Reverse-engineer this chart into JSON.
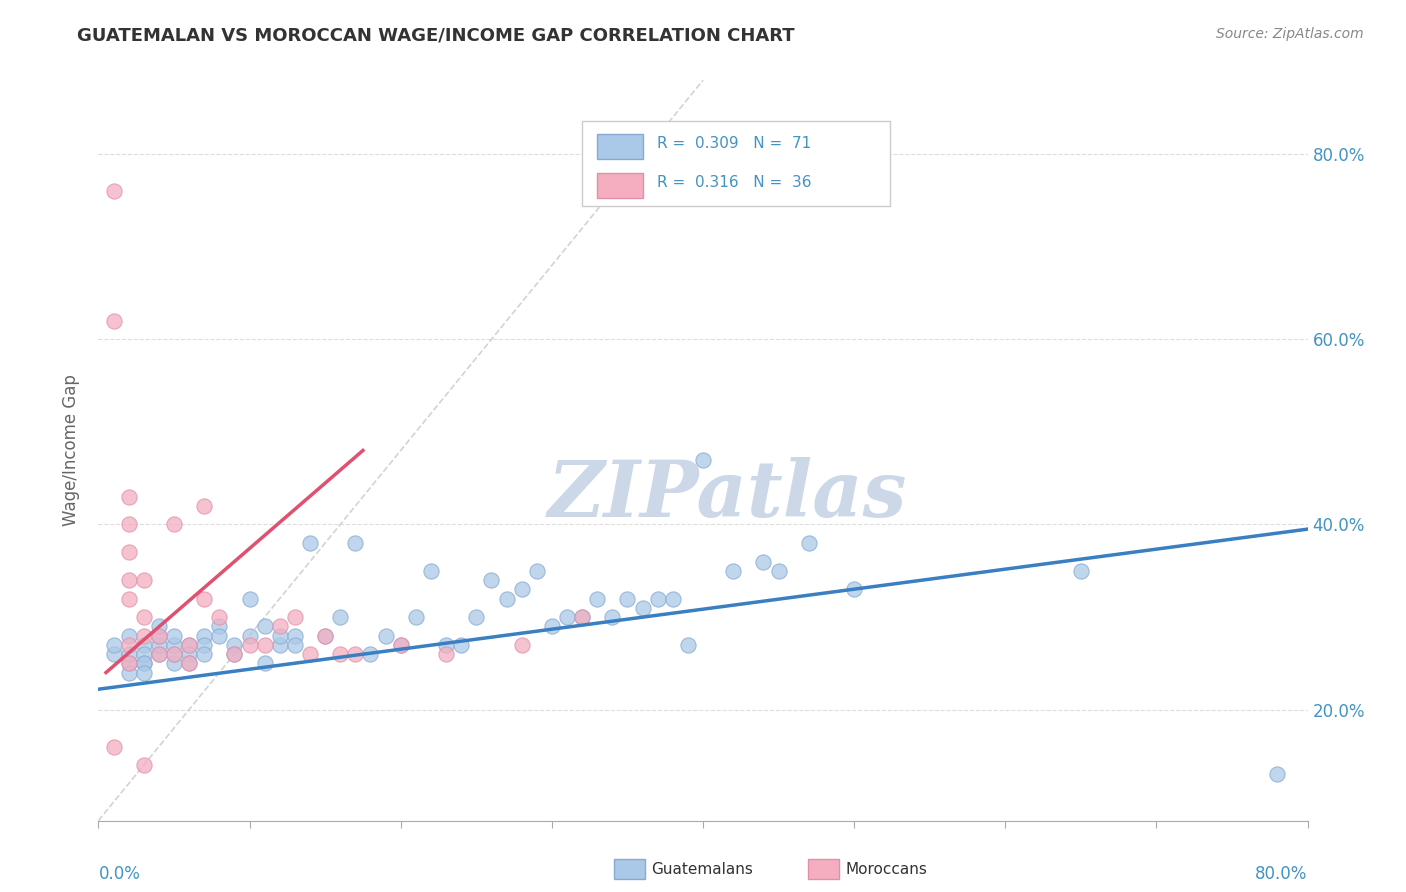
{
  "title": "GUATEMALAN VS MOROCCAN WAGE/INCOME GAP CORRELATION CHART",
  "source_text": "Source: ZipAtlas.com",
  "ylabel": "Wage/Income Gap",
  "xlim": [
    0.0,
    0.8
  ],
  "ylim": [
    0.08,
    0.88
  ],
  "yticks": [
    0.2,
    0.4,
    0.6,
    0.8
  ],
  "ytick_labels": [
    "20.0%",
    "40.0%",
    "60.0%",
    "80.0%"
  ],
  "xtick_positions": [
    0.0,
    0.1,
    0.2,
    0.3,
    0.4,
    0.5,
    0.6,
    0.7,
    0.8
  ],
  "legend1_R": "0.309",
  "legend1_N": "71",
  "legend2_R": "0.316",
  "legend2_N": "36",
  "blue_scatter_color": "#aac9e8",
  "pink_scatter_color": "#f4aec0",
  "blue_edge_color": "#88aad0",
  "pink_edge_color": "#e090a8",
  "blue_line_color": "#3a7fc1",
  "pink_line_color": "#e05070",
  "diag_color": "#cccccc",
  "grid_color": "#dddddd",
  "watermark_color": "#ccd8e8",
  "background_color": "#ffffff",
  "tick_color": "#4393c3",
  "title_color": "#333333",
  "source_color": "#888888",
  "ylabel_color": "#666666",
  "guatemalan_x": [
    0.01,
    0.01,
    0.02,
    0.02,
    0.02,
    0.02,
    0.03,
    0.03,
    0.03,
    0.03,
    0.03,
    0.04,
    0.04,
    0.04,
    0.04,
    0.05,
    0.05,
    0.05,
    0.05,
    0.06,
    0.06,
    0.06,
    0.07,
    0.07,
    0.07,
    0.08,
    0.08,
    0.09,
    0.09,
    0.1,
    0.1,
    0.11,
    0.11,
    0.12,
    0.12,
    0.13,
    0.13,
    0.14,
    0.15,
    0.16,
    0.17,
    0.18,
    0.19,
    0.2,
    0.21,
    0.22,
    0.23,
    0.24,
    0.25,
    0.26,
    0.27,
    0.28,
    0.29,
    0.3,
    0.31,
    0.32,
    0.33,
    0.34,
    0.35,
    0.36,
    0.37,
    0.38,
    0.39,
    0.4,
    0.42,
    0.44,
    0.45,
    0.47,
    0.5,
    0.65,
    0.78
  ],
  "guatemalan_y": [
    0.26,
    0.27,
    0.25,
    0.24,
    0.26,
    0.28,
    0.27,
    0.25,
    0.26,
    0.25,
    0.24,
    0.26,
    0.27,
    0.28,
    0.29,
    0.25,
    0.26,
    0.27,
    0.28,
    0.27,
    0.26,
    0.25,
    0.28,
    0.27,
    0.26,
    0.29,
    0.28,
    0.27,
    0.26,
    0.32,
    0.28,
    0.29,
    0.25,
    0.27,
    0.28,
    0.28,
    0.27,
    0.38,
    0.28,
    0.3,
    0.38,
    0.26,
    0.28,
    0.27,
    0.3,
    0.35,
    0.27,
    0.27,
    0.3,
    0.34,
    0.32,
    0.33,
    0.35,
    0.29,
    0.3,
    0.3,
    0.32,
    0.3,
    0.32,
    0.31,
    0.32,
    0.32,
    0.27,
    0.47,
    0.35,
    0.36,
    0.35,
    0.38,
    0.33,
    0.35,
    0.13
  ],
  "moroccan_x": [
    0.01,
    0.01,
    0.01,
    0.02,
    0.02,
    0.02,
    0.02,
    0.02,
    0.02,
    0.02,
    0.03,
    0.03,
    0.03,
    0.03,
    0.04,
    0.04,
    0.05,
    0.05,
    0.06,
    0.06,
    0.07,
    0.07,
    0.08,
    0.09,
    0.1,
    0.11,
    0.12,
    0.13,
    0.14,
    0.15,
    0.16,
    0.17,
    0.2,
    0.23,
    0.28,
    0.32
  ],
  "moroccan_y": [
    0.76,
    0.62,
    0.16,
    0.43,
    0.4,
    0.37,
    0.34,
    0.32,
    0.27,
    0.25,
    0.34,
    0.3,
    0.28,
    0.14,
    0.28,
    0.26,
    0.4,
    0.26,
    0.27,
    0.25,
    0.42,
    0.32,
    0.3,
    0.26,
    0.27,
    0.27,
    0.29,
    0.3,
    0.26,
    0.28,
    0.26,
    0.26,
    0.27,
    0.26,
    0.27,
    0.3
  ],
  "blue_line_x0": 0.0,
  "blue_line_y0": 0.222,
  "blue_line_x1": 0.8,
  "blue_line_y1": 0.395,
  "pink_line_x0": 0.005,
  "pink_line_y0": 0.24,
  "pink_line_x1": 0.175,
  "pink_line_y1": 0.48
}
